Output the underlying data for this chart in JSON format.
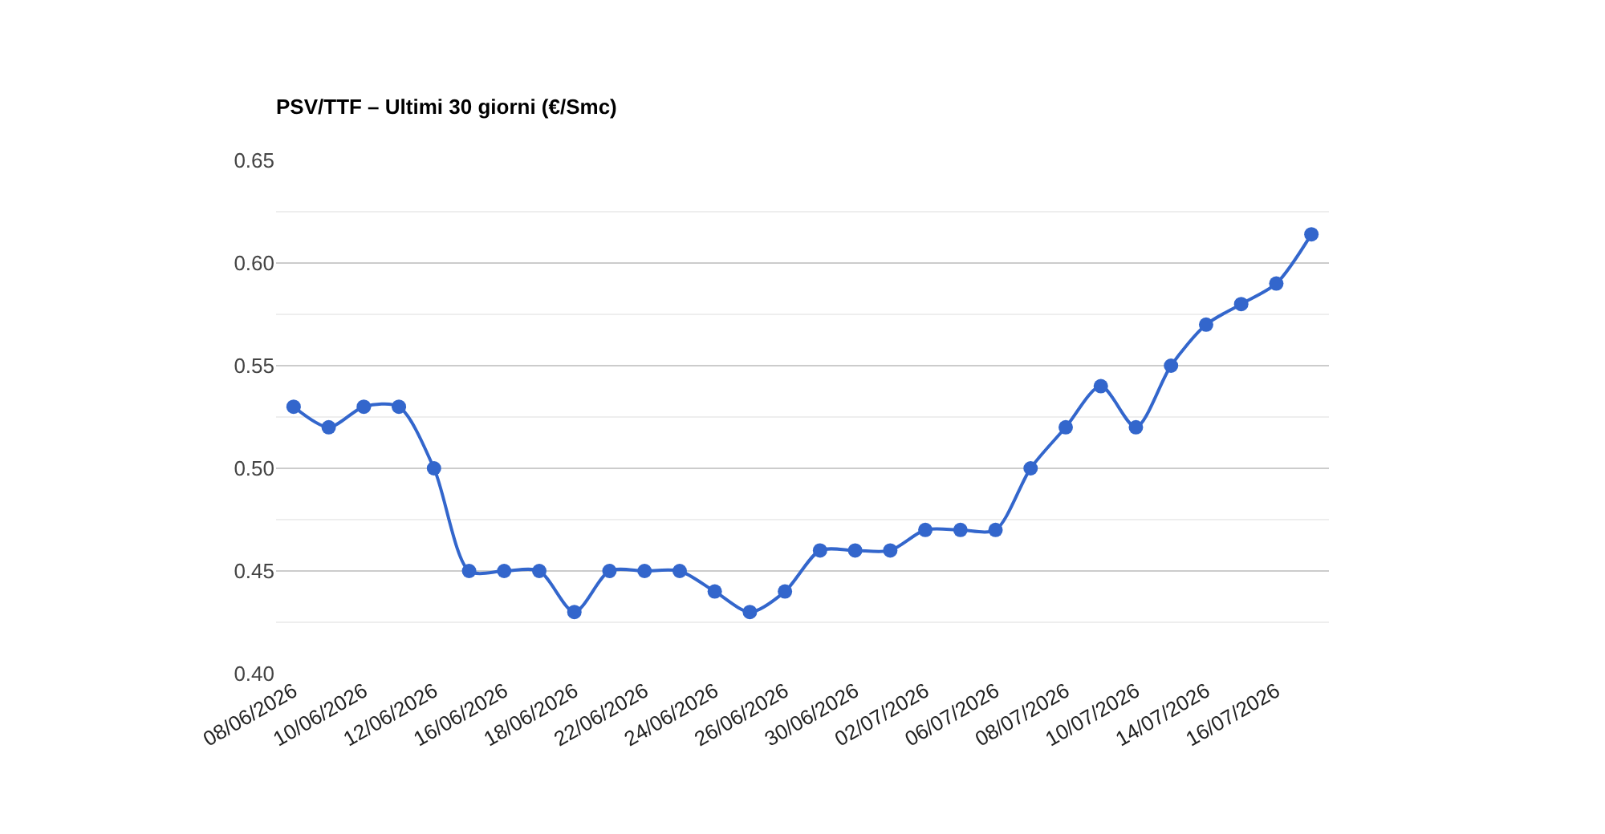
{
  "chart_data": {
    "type": "line",
    "title": "PSV/TTF – Ultimi 30 giorni (€/Smc)",
    "categories": [
      "08/06/2026",
      null,
      "10/06/2026",
      null,
      "12/06/2026",
      null,
      "16/06/2026",
      null,
      "18/06/2026",
      null,
      "22/06/2026",
      null,
      "24/06/2026",
      null,
      "26/06/2026",
      null,
      "30/06/2026",
      null,
      "02/07/2026",
      null,
      "06/07/2026",
      null,
      "08/07/2026",
      null,
      "10/07/2026",
      null,
      "14/07/2026",
      null,
      "16/07/2026",
      null
    ],
    "series": [
      {
        "color": "#3366cc",
        "values": [
          0.53,
          0.52,
          0.53,
          0.53,
          0.5,
          0.45,
          0.45,
          0.45,
          0.43,
          0.45,
          0.45,
          0.45,
          0.44,
          0.43,
          0.44,
          0.46,
          0.46,
          0.46,
          0.47,
          0.47,
          0.47,
          0.5,
          0.52,
          0.54,
          0.52,
          0.55,
          0.57,
          0.58,
          0.59,
          0.614
        ]
      }
    ],
    "ylim": [
      0.4,
      0.65
    ],
    "yticks": [
      {
        "value": 0.4,
        "label": "0.40"
      },
      {
        "value": 0.45,
        "label": "0.45"
      },
      {
        "value": 0.5,
        "label": "0.50"
      },
      {
        "value": 0.55,
        "label": "0.55"
      },
      {
        "value": 0.6,
        "label": "0.60"
      },
      {
        "value": 0.65,
        "label": "0.65"
      }
    ],
    "grid": "y",
    "marker": "circle",
    "line_style": "solid",
    "legend": false
  }
}
